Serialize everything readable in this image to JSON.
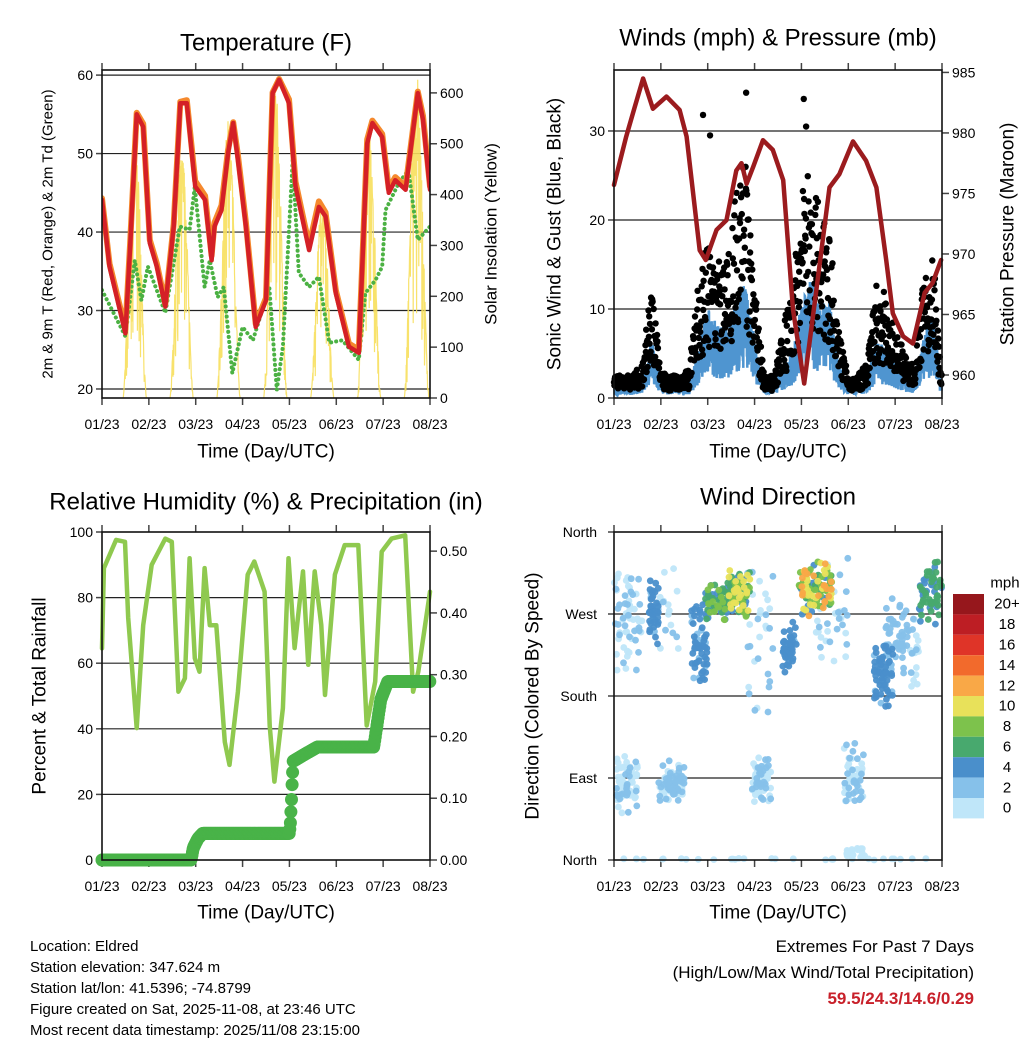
{
  "chart_data": [
    {
      "type": "line",
      "title": "Temperature (F)",
      "xlabel": "Time (Day/UTC)",
      "ylabel": "2m & 9m T (Red, Orange) & 2m Td (Green)",
      "y2label": "Solar Insolation (Yellow)",
      "x_tick_labels": [
        "01/23",
        "02/23",
        "03/23",
        "04/23",
        "05/23",
        "06/23",
        "07/23",
        "08/23"
      ],
      "xlim_days": [
        0,
        7
      ],
      "ylim": [
        18.85,
        60.65
      ],
      "y_ticks": [
        20,
        30,
        40,
        50,
        60
      ],
      "y_tick_labels": [
        "20",
        "30",
        "40",
        "50",
        "60"
      ],
      "y2lim": [
        0,
        645
      ],
      "y2_ticks": [
        0,
        100,
        200,
        300,
        400,
        500,
        600
      ],
      "y2_tick_labels": [
        "0",
        "100",
        "200",
        "300",
        "400",
        "500",
        "600"
      ],
      "grid": true,
      "series": [
        {
          "name": "9m T",
          "color": "#f5892d",
          "x": [
            0,
            0.16,
            0.5,
            0.6,
            0.74,
            0.88,
            1.02,
            1.17,
            1.35,
            1.53,
            1.67,
            1.81,
            1.99,
            2.2,
            2.34,
            2.4,
            2.55,
            2.69,
            2.8,
            2.9,
            3.07,
            3.28,
            3.5,
            3.64,
            3.78,
            3.99,
            4.13,
            4.42,
            4.63,
            4.77,
            4.99,
            5.27,
            5.48,
            5.66,
            5.77,
            5.98,
            6.12,
            6.26,
            6.48,
            6.74,
            6.85,
            7.0
          ],
          "y": [
            44.3,
            36,
            27.6,
            38.5,
            55.2,
            53.8,
            39,
            36,
            30.8,
            41,
            56.6,
            56.8,
            46.5,
            44.6,
            37,
            41.2,
            43.4,
            50.4,
            54,
            49.8,
            41.2,
            28.3,
            31.6,
            57.8,
            59.5,
            56.9,
            46.4,
            38.3,
            43.9,
            42.5,
            32.6,
            25.8,
            25,
            51.8,
            54.2,
            52.5,
            45.5,
            47,
            45.8,
            57.9,
            54.8,
            45.8
          ]
        },
        {
          "name": "2m T",
          "color": "#d42027",
          "x": [
            0,
            0.16,
            0.5,
            0.6,
            0.74,
            0.88,
            1.02,
            1.17,
            1.35,
            1.53,
            1.67,
            1.81,
            1.99,
            2.2,
            2.34,
            2.4,
            2.55,
            2.69,
            2.8,
            2.9,
            3.07,
            3.28,
            3.5,
            3.64,
            3.78,
            3.99,
            4.13,
            4.42,
            4.63,
            4.77,
            4.99,
            5.27,
            5.48,
            5.66,
            5.77,
            5.98,
            6.12,
            6.26,
            6.48,
            6.74,
            6.85,
            7.0
          ],
          "y": [
            44.1,
            35.6,
            27.1,
            38,
            55,
            53.4,
            38.6,
            35.6,
            30.5,
            40.7,
            56.4,
            56.4,
            45.8,
            44.1,
            36.4,
            40.7,
            42.8,
            50,
            53.9,
            49.2,
            40.7,
            27.9,
            31.3,
            57.7,
            59.4,
            56.4,
            45.8,
            37.7,
            43.2,
            42,
            32.2,
            25.4,
            24.6,
            51.3,
            53.9,
            52.1,
            45,
            46.6,
            45.4,
            57.7,
            54.3,
            45.4
          ]
        },
        {
          "name": "2m Td",
          "color": "#4bb143",
          "x": [
            0,
            0.5,
            0.7,
            0.84,
            0.98,
            1.35,
            1.66,
            1.87,
            1.98,
            2.19,
            2.3,
            2.47,
            2.6,
            2.78,
            3.0,
            3.22,
            3.57,
            3.73,
            3.86,
            4.07,
            4.2,
            4.42,
            4.63,
            4.85,
            5.13,
            5.48,
            5.62,
            5.84,
            5.98,
            6.05,
            6.33,
            6.54,
            6.74,
            7.0
          ],
          "y": [
            32.6,
            26.7,
            36.4,
            31.3,
            35.6,
            29.7,
            40.7,
            40.3,
            45.8,
            33,
            36.4,
            31.7,
            33,
            22,
            27.9,
            26.2,
            33,
            19.9,
            25.4,
            49.2,
            34.8,
            33,
            34.3,
            25.9,
            26.2,
            23.7,
            32.2,
            33.9,
            35.6,
            42.8,
            46.2,
            47.9,
            39,
            40.7
          ]
        },
        {
          "name": "Solar Insolation",
          "color": "#f7df5c",
          "axis": "right",
          "daily_peaks": [
            {
              "start": 0.45,
              "end": 0.95,
              "peak": 540
            },
            {
              "start": 1.45,
              "end": 1.95,
              "peak": 495
            },
            {
              "start": 2.45,
              "end": 2.95,
              "peak": 555
            },
            {
              "start": 3.45,
              "end": 3.95,
              "peak": 610
            },
            {
              "start": 4.45,
              "end": 4.95,
              "peak": 390
            },
            {
              "start": 5.45,
              "end": 5.95,
              "peak": 535
            },
            {
              "start": 6.45,
              "end": 6.98,
              "peak": 640
            }
          ]
        }
      ]
    },
    {
      "type": "line",
      "title": "Winds (mph) & Pressure (mb)",
      "xlabel": "Time (Day/UTC)",
      "ylabel": "Sonic Wind & Gust (Blue, Black)",
      "y2label": "Station Pressure (Maroon)",
      "x_tick_labels": [
        "01/23",
        "02/23",
        "03/23",
        "04/23",
        "05/23",
        "06/23",
        "07/23",
        "08/23"
      ],
      "xlim_days": [
        0,
        7
      ],
      "ylim": [
        0,
        36.85
      ],
      "y_ticks": [
        0,
        10,
        20,
        30
      ],
      "y_tick_labels": [
        "0",
        "10",
        "20",
        "30"
      ],
      "y2lim": [
        958.1,
        985.2
      ],
      "y2_ticks": [
        960,
        965,
        970,
        975,
        980,
        985
      ],
      "y2_tick_labels": [
        "960",
        "965",
        "970",
        "975",
        "980",
        "985"
      ],
      "grid": true,
      "wind": {
        "x_start": 0,
        "x_step": 0.2,
        "sustained": [
          1,
          1,
          1,
          1.5,
          5,
          1.5,
          1,
          1,
          1.2,
          4,
          8,
          6,
          6,
          8,
          10,
          5,
          1.2,
          1.2,
          2.5,
          4,
          8,
          10,
          8,
          8,
          3,
          1,
          1,
          1.5,
          5,
          4,
          3,
          2,
          1.5,
          5,
          7,
          1
        ],
        "gust": [
          2,
          2,
          2,
          3,
          10,
          2.5,
          2,
          2,
          2.5,
          10,
          14,
          12,
          12,
          18,
          21,
          10,
          2,
          2,
          6,
          10,
          18,
          20,
          16,
          15,
          6,
          2,
          2,
          3,
          10,
          9,
          6,
          4,
          3,
          10,
          13,
          2
        ],
        "gust_outliers": [
          [
            1.9,
            31.8
          ],
          [
            2.05,
            29.5
          ],
          [
            2.82,
            34.3
          ],
          [
            4.05,
            33.6
          ],
          [
            4.1,
            30.5
          ]
        ],
        "sustained_color": "#4f95d0",
        "gust_color": "#000000"
      },
      "pressure": {
        "color": "#9b1b1e",
        "x": [
          0,
          0.26,
          0.44,
          0.62,
          0.83,
          1.12,
          1.4,
          1.55,
          1.83,
          1.96,
          2.19,
          2.4,
          2.61,
          2.72,
          2.83,
          2.97,
          3.18,
          3.39,
          3.61,
          3.82,
          4.06,
          4.31,
          4.6,
          4.81,
          5.1,
          5.38,
          5.6,
          5.81,
          5.95,
          6.17,
          6.38,
          6.63,
          6.8,
          6.98
        ],
        "y": [
          975.7,
          979.7,
          982.1,
          984.5,
          982,
          983,
          981.9,
          979.7,
          970.3,
          969.5,
          972,
          972.8,
          976.9,
          977.5,
          975.8,
          977.2,
          979.4,
          978.6,
          976.1,
          965.4,
          959.3,
          966.8,
          975.5,
          976.6,
          979.3,
          977.7,
          975.5,
          969.5,
          965.1,
          963.2,
          962.6,
          966.8,
          967.6,
          969.5
        ]
      }
    },
    {
      "type": "line",
      "title": "Relative Humidity (%) & Precipitation (in)",
      "xlabel": "Time (Day/UTC)",
      "ylabel": "Percent & Total Rainfall",
      "x_tick_labels": [
        "01/23",
        "02/23",
        "03/23",
        "04/23",
        "05/23",
        "06/23",
        "07/23",
        "08/23"
      ],
      "xlim_days": [
        0,
        7
      ],
      "ylim": [
        0,
        100
      ],
      "y_ticks": [
        0,
        20,
        40,
        60,
        80,
        100
      ],
      "y_tick_labels": [
        "0",
        "20",
        "40",
        "60",
        "80",
        "100"
      ],
      "y2lim": [
        0,
        0.531
      ],
      "y2_ticks": [
        0,
        0.1,
        0.2,
        0.3,
        0.4,
        0.5
      ],
      "y2_tick_labels": [
        "0.00",
        "0.10",
        "0.20",
        "0.30",
        "0.40",
        "0.50"
      ],
      "grid": true,
      "humidity": {
        "color": "#8fc94f",
        "x": [
          0,
          0.04,
          0.3,
          0.49,
          0.56,
          0.74,
          0.88,
          1.06,
          1.35,
          1.49,
          1.63,
          1.77,
          1.87,
          1.98,
          2.08,
          2.19,
          2.3,
          2.44,
          2.62,
          2.72,
          2.9,
          3.11,
          3.25,
          3.47,
          3.58,
          3.68,
          3.86,
          3.98,
          4.11,
          4.29,
          4.4,
          4.54,
          4.68,
          4.76,
          4.97,
          5.18,
          5.47,
          5.65,
          5.83,
          5.97,
          6.18,
          6.47,
          6.64,
          6.75,
          7.0
        ],
        "y": [
          64.5,
          89,
          97.6,
          97,
          73.8,
          40.2,
          71.6,
          90,
          98,
          97,
          51.3,
          55.4,
          92,
          61.5,
          57.4,
          89,
          71.6,
          71.6,
          36,
          29,
          51.3,
          87,
          91,
          81.8,
          41,
          23.9,
          46.3,
          92,
          64.6,
          88,
          59.5,
          88,
          71.6,
          50.3,
          87,
          96,
          96,
          41,
          54.4,
          94,
          98,
          99,
          51.3,
          57.4,
          81.8
        ]
      },
      "precipitation": {
        "color": "#49b348",
        "x": [
          0,
          1.9,
          1.95,
          2.05,
          2.15,
          4.0,
          4.02,
          4.04,
          4.06,
          4.08,
          4.3,
          4.6,
          5.8,
          5.95,
          6.1,
          7
        ],
        "y": [
          0,
          0,
          0.02,
          0.035,
          0.043,
          0.043,
          0.06,
          0.09,
          0.13,
          0.16,
          0.17,
          0.183,
          0.183,
          0.26,
          0.289,
          0.289
        ]
      }
    },
    {
      "type": "scatter",
      "title": "Wind Direction",
      "xlabel": "Time (Day/UTC)",
      "ylabel": "Direction (Colored By Speed)",
      "x_tick_labels": [
        "01/23",
        "02/23",
        "03/23",
        "04/23",
        "05/23",
        "06/23",
        "07/23",
        "08/23"
      ],
      "xlim_days": [
        0,
        7
      ],
      "ylim": [
        0,
        360
      ],
      "y_ticks": [
        0,
        90,
        180,
        270,
        360
      ],
      "y_tick_labels": [
        "North",
        "East",
        "South",
        "West",
        "North"
      ],
      "grid": true,
      "clusters": [
        {
          "days": [
            0,
            0.6
          ],
          "dir": [
            190,
            330
          ],
          "speed": [
            0,
            1.5
          ],
          "n": 60
        },
        {
          "days": [
            0.05,
            0.5
          ],
          "dir": [
            50,
            115
          ],
          "speed": [
            0,
            1.5
          ],
          "n": 70
        },
        {
          "days": [
            0.75,
            0.95
          ],
          "dir": [
            230,
            315
          ],
          "speed": [
            2.5,
            5
          ],
          "n": 50
        },
        {
          "days": [
            0.95,
            1.5
          ],
          "dir": [
            60,
            110
          ],
          "speed": [
            0,
            2
          ],
          "n": 80
        },
        {
          "days": [
            0.95,
            1.5
          ],
          "dir": [
            200,
            330
          ],
          "speed": [
            0,
            1.5
          ],
          "n": 15
        },
        {
          "days": [
            1.65,
            2.0
          ],
          "dir": [
            190,
            285
          ],
          "speed": [
            2,
            5
          ],
          "n": 60
        },
        {
          "days": [
            1.95,
            2.45
          ],
          "dir": [
            255,
            310
          ],
          "speed": [
            3,
            8
          ],
          "n": 70
        },
        {
          "days": [
            2.45,
            2.9
          ],
          "dir": [
            265,
            320
          ],
          "speed": [
            4,
            11
          ],
          "n": 80
        },
        {
          "days": [
            2.85,
            3.4
          ],
          "dir": [
            150,
            330
          ],
          "speed": [
            0,
            2
          ],
          "n": 30
        },
        {
          "days": [
            2.95,
            3.35
          ],
          "dir": [
            55,
            115
          ],
          "speed": [
            0,
            1.5
          ],
          "n": 70
        },
        {
          "days": [
            3.6,
            3.9
          ],
          "dir": [
            200,
            265
          ],
          "speed": [
            2.5,
            5
          ],
          "n": 50
        },
        {
          "days": [
            3.95,
            4.65
          ],
          "dir": [
            265,
            330
          ],
          "speed": [
            4,
            13
          ],
          "n": 110
        },
        {
          "days": [
            4.3,
            5.0
          ],
          "dir": [
            190,
            345
          ],
          "speed": [
            0,
            2
          ],
          "n": 35
        },
        {
          "days": [
            4.9,
            5.35
          ],
          "dir": [
            50,
            130
          ],
          "speed": [
            0,
            2
          ],
          "n": 60
        },
        {
          "days": [
            4.9,
            5.35
          ],
          "dir": [
            0,
            15
          ],
          "speed": [
            0,
            1
          ],
          "n": 20
        },
        {
          "days": [
            5.55,
            5.95
          ],
          "dir": [
            165,
            240
          ],
          "speed": [
            2.5,
            5
          ],
          "n": 70
        },
        {
          "days": [
            5.8,
            6.3
          ],
          "dir": [
            200,
            290
          ],
          "speed": [
            1,
            3
          ],
          "n": 50
        },
        {
          "days": [
            6.3,
            6.5
          ],
          "dir": [
            160,
            300
          ],
          "speed": [
            0,
            1.5
          ],
          "n": 20
        },
        {
          "days": [
            6.5,
            7
          ],
          "dir": [
            255,
            330
          ],
          "speed": [
            3,
            7
          ],
          "n": 60
        },
        {
          "days": [
            0,
            7
          ],
          "dir": [
            0,
            2
          ],
          "speed": [
            0,
            0.5
          ],
          "n": 30
        }
      ],
      "legend": {
        "title": "mph",
        "placement": "right",
        "labels": [
          "0",
          "2",
          "4",
          "6",
          "8",
          "10",
          "12",
          "14",
          "16",
          "18",
          "20+"
        ],
        "colors": [
          "#bfe6f9",
          "#86c1ea",
          "#4a8fcb",
          "#48a96e",
          "#7dc24c",
          "#e8e15a",
          "#f9a847",
          "#f26a2c",
          "#df3428",
          "#bd1e24",
          "#96171c"
        ]
      }
    }
  ],
  "footer": {
    "location": "Location: Eldred",
    "elevation": "Station elevation: 347.624 m",
    "latlon": "Station lat/lon: 41.5396; -74.8799",
    "created": "Figure created on Sat, 2025-11-08, at 23:46 UTC",
    "timestamp": "Most recent data timestamp: 2025/11/08 23:15:00"
  },
  "extremes": {
    "title": "Extremes For Past 7 Days",
    "subtitle": "(High/Low/Max Wind/Total Precipitation)",
    "values": "59.5/24.3/14.6/0.29"
  }
}
